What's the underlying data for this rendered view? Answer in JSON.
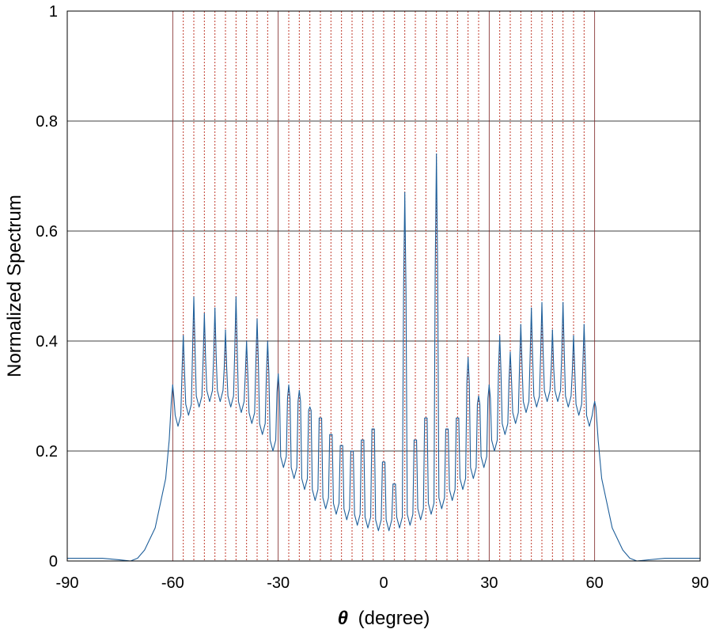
{
  "chart_data": {
    "type": "line",
    "title": "",
    "xlabel_symbol": "θ",
    "xlabel_unit": "(degree)",
    "ylabel": "Normalized Spectrum",
    "xlim": [
      -90,
      90
    ],
    "ylim": [
      0,
      1
    ],
    "xticks": [
      -90,
      -60,
      -30,
      0,
      30,
      60,
      90
    ],
    "xtick_labels": [
      "-90",
      "-60",
      "-30",
      "0",
      "30",
      "60",
      "90"
    ],
    "yticks": [
      0,
      0.2,
      0.4,
      0.6,
      0.8,
      1
    ],
    "ytick_labels": [
      "0",
      "0.2",
      "0.4",
      "0.6",
      "0.8",
      "1"
    ],
    "grid": {
      "horizontal": true,
      "vertical_at": [
        -60,
        -30,
        30,
        60
      ]
    },
    "colors": {
      "spectrum": "#1f5f9a",
      "markers": "#c0392b",
      "grid": "#000000"
    },
    "true_directions_deg": [
      -60,
      -57,
      -54,
      -51,
      -48,
      -45,
      -42,
      -39,
      -36,
      -33,
      -30,
      -27,
      -24,
      -21,
      -18,
      -15,
      -12,
      -9,
      -6,
      -3,
      0,
      3,
      6,
      9,
      12,
      15,
      18,
      21,
      24,
      27,
      30,
      33,
      36,
      39,
      42,
      45,
      48,
      51,
      54,
      57,
      60
    ],
    "series": [
      {
        "style": "solid",
        "peaks": {
          "x": [
            -60,
            -57,
            -54,
            -51,
            -48,
            -45,
            -42,
            -39,
            -36,
            -33,
            -30,
            -27,
            -24,
            -21,
            -18,
            -15,
            -12,
            -9,
            -6,
            -3,
            0,
            3,
            6,
            9,
            12,
            15,
            18,
            21,
            24,
            27,
            30,
            33,
            36,
            39,
            42,
            45,
            48,
            51,
            54,
            57,
            60
          ],
          "y": [
            0.32,
            0.41,
            0.48,
            0.45,
            0.46,
            0.42,
            0.48,
            0.4,
            0.44,
            0.4,
            0.34,
            0.32,
            0.31,
            0.28,
            0.26,
            0.23,
            0.21,
            0.2,
            0.22,
            0.24,
            0.18,
            0.14,
            0.67,
            0.22,
            0.26,
            0.74,
            0.24,
            0.26,
            0.37,
            0.3,
            0.32,
            0.41,
            0.38,
            0.43,
            0.46,
            0.47,
            0.42,
            0.47,
            0.41,
            0.43,
            0.29
          ]
        },
        "envelope_troughs": {
          "x": [
            -58.5,
            -55.5,
            -52.5,
            -49.5,
            -46.5,
            -43.5,
            -40.5,
            -37.5,
            -34.5,
            -31.5,
            -28.5,
            -25.5,
            -22.5,
            -19.5,
            -16.5,
            -13.5,
            -10.5,
            -7.5,
            -4.5,
            -1.5,
            1.5,
            4.5,
            7.5,
            10.5,
            13.5,
            16.5,
            19.5,
            22.5,
            25.5,
            28.5,
            31.5,
            34.5,
            37.5,
            40.5,
            43.5,
            46.5,
            49.5,
            52.5,
            55.5,
            58.5
          ],
          "y": [
            0.245,
            0.265,
            0.28,
            0.29,
            0.29,
            0.28,
            0.27,
            0.25,
            0.23,
            0.2,
            0.17,
            0.15,
            0.13,
            0.11,
            0.095,
            0.085,
            0.075,
            0.065,
            0.06,
            0.055,
            0.055,
            0.06,
            0.065,
            0.075,
            0.085,
            0.095,
            0.11,
            0.13,
            0.15,
            0.17,
            0.2,
            0.23,
            0.25,
            0.27,
            0.28,
            0.29,
            0.29,
            0.28,
            0.265,
            0.245
          ]
        },
        "tails": {
          "x": [
            -90,
            -80,
            -75,
            -72,
            -70,
            -68,
            -65,
            -62,
            -61,
            61,
            62,
            65,
            68,
            70,
            72,
            75,
            80,
            90
          ],
          "y": [
            0.005,
            0.005,
            0.002,
            0.0,
            0.005,
            0.02,
            0.06,
            0.15,
            0.22,
            0.22,
            0.15,
            0.06,
            0.02,
            0.005,
            0.0,
            0.002,
            0.005,
            0.005
          ]
        }
      }
    ]
  }
}
